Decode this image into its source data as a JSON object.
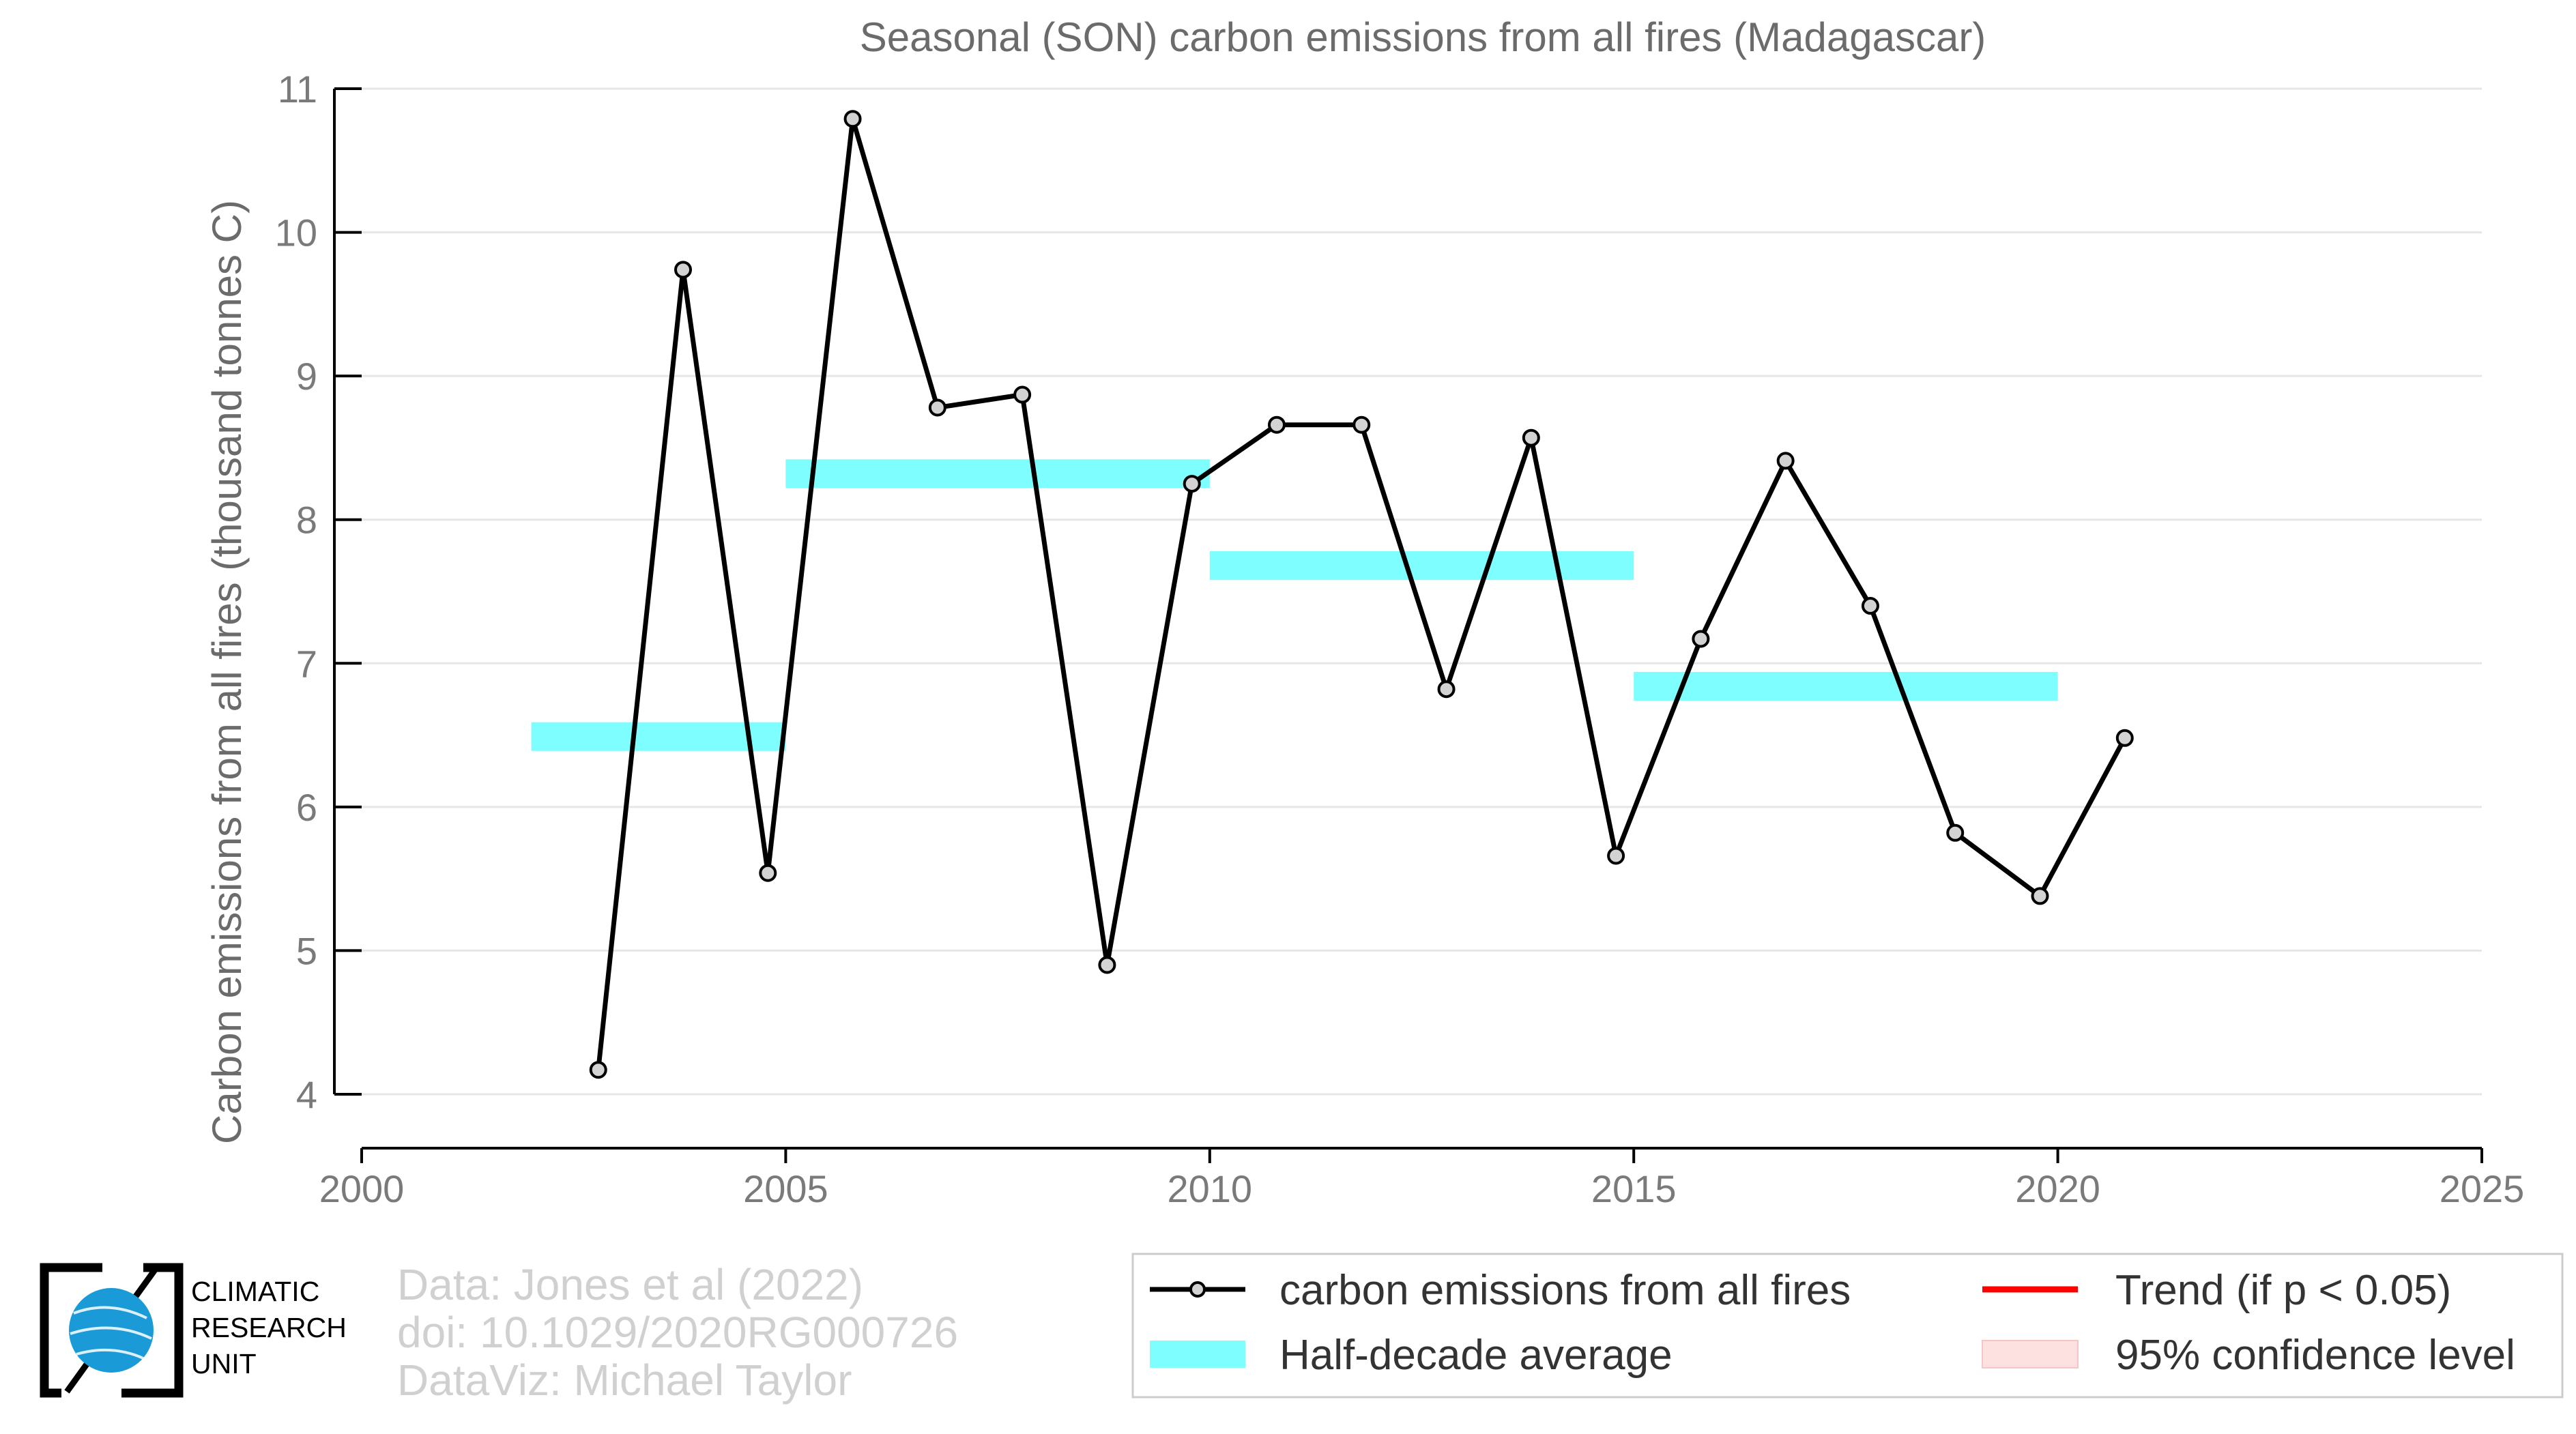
{
  "chart_data": {
    "type": "line",
    "title": "Seasonal (SON) carbon emissions from all fires (Madagascar)",
    "ylabel": "Carbon emissions from all fires (thousand tonnes C)",
    "xlabel": "",
    "xlim": [
      2000,
      2025
    ],
    "ylim": [
      4,
      11
    ],
    "x_ticks": [
      "2000",
      "2005",
      "2010",
      "2015",
      "2020",
      "2025"
    ],
    "y_ticks": [
      "4",
      "5",
      "6",
      "7",
      "8",
      "9",
      "10",
      "11"
    ],
    "grid": "horizontal",
    "legend_position": "bottom-right",
    "series": [
      {
        "name": "carbon emissions from all fires",
        "color": "#000000",
        "marker_fill": "#d3d3d3",
        "x": [
          2002.79,
          2003.79,
          2004.79,
          2005.79,
          2006.79,
          2007.79,
          2008.79,
          2009.79,
          2010.79,
          2011.79,
          2012.79,
          2013.79,
          2014.79,
          2015.79,
          2016.79,
          2017.79,
          2018.79,
          2019.79,
          2020.79
        ],
        "values": [
          4.17,
          9.74,
          5.54,
          10.79,
          8.78,
          8.87,
          4.9,
          8.25,
          8.66,
          8.66,
          6.82,
          8.57,
          5.66,
          7.17,
          8.41,
          7.4,
          5.82,
          5.38,
          6.48
        ]
      }
    ],
    "half_decade_averages": {
      "name": "Half-decade average",
      "color": "#7ffeff",
      "segments": [
        {
          "x0": 2002,
          "x1": 2005,
          "value": 6.49
        },
        {
          "x0": 2005,
          "x1": 2010,
          "value": 8.32
        },
        {
          "x0": 2010,
          "x1": 2015,
          "value": 7.68
        },
        {
          "x0": 2015,
          "x1": 2020,
          "value": 6.84
        }
      ]
    },
    "legend": {
      "entries": [
        {
          "label": "carbon emissions from all fires",
          "kind": "line-marker",
          "color": "#000000"
        },
        {
          "label": "Trend (if p < 0.05)",
          "kind": "line",
          "color": "#ff0000"
        },
        {
          "label": "Half-decade average",
          "kind": "band",
          "color": "#7ffeff"
        },
        {
          "label": "95% confidence level",
          "kind": "band",
          "color": "#fde0e0"
        }
      ]
    }
  },
  "credits": {
    "line1": "Data: Jones et al (2022)",
    "line2": "doi: 10.1029/2020RG000726",
    "line3": "DataViz: Michael Taylor"
  },
  "logo": {
    "line1": "CLIMATIC",
    "line2": "RESEARCH",
    "line3": "UNIT",
    "globe_color": "#1a9ad6"
  }
}
